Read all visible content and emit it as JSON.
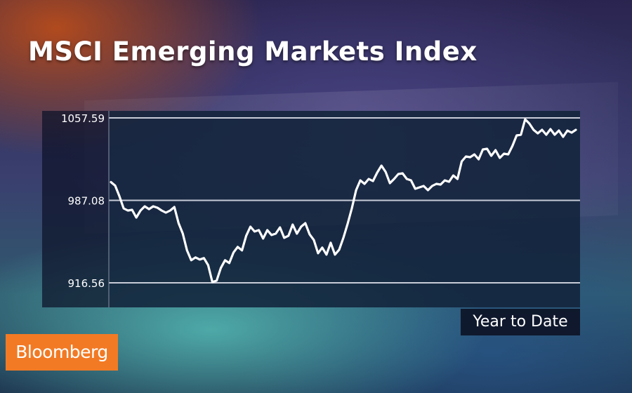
{
  "colors": {
    "line": "#ffffff",
    "gridline": "#c8ccd8",
    "brand": "#f27a24"
  },
  "header": {
    "title": "MSCI Emerging Markets Index"
  },
  "badge": {
    "range_label": "Year to Date"
  },
  "logo": {
    "text": "Bloomberg"
  },
  "chart_data": {
    "type": "line",
    "title": "MSCI Emerging Markets Index",
    "xlabel": "Year to Date",
    "ylabel": "",
    "ylim": [
      916.56,
      1057.59
    ],
    "y_ticks": [
      "1057.59",
      "987.08",
      "916.56"
    ],
    "grid": true,
    "series": [
      {
        "values": [
          1002.7,
          999.7,
          990.7,
          980.2,
          978.4,
          979.0,
          972.4,
          978.4,
          982.0,
          979.6,
          982.0,
          980.8,
          978.4,
          976.6,
          978.4,
          981.4,
          967.6,
          958.6,
          944.3,
          935.9,
          938.3,
          936.5,
          937.7,
          931.7,
          917.2,
          918.4,
          929.3,
          935.9,
          933.5,
          942.5,
          947.3,
          944.3,
          956.8,
          964.6,
          960.4,
          961.6,
          954.4,
          961.6,
          957.4,
          958.6,
          964.0,
          955.0,
          956.8,
          966.4,
          958.6,
          964.6,
          967.6,
          958.0,
          953.2,
          941.9,
          946.7,
          940.7,
          950.8,
          940.7,
          944.9,
          955.0,
          967.0,
          980.2,
          995.8,
          1004.2,
          1001.2,
          1005.4,
          1003.6,
          1010.8,
          1016.8,
          1011.4,
          1001.8,
          1005.4,
          1009.6,
          1010.2,
          1005.4,
          1004.2,
          997.0,
          998.2,
          999.4,
          995.8,
          999.4,
          1001.2,
          1000.6,
          1004.2,
          1003.0,
          1008.4,
          1005.4,
          1020.4,
          1024.6,
          1024.0,
          1026.4,
          1022.2,
          1030.6,
          1031.2,
          1025.2,
          1030.0,
          1023.4,
          1027.0,
          1026.4,
          1033.6,
          1042.6,
          1043.2,
          1056.4,
          1052.8,
          1047.4,
          1044.4,
          1047.4,
          1043.2,
          1048.0,
          1043.2,
          1046.8,
          1041.4,
          1046.8,
          1045.0,
          1047.4
        ]
      }
    ]
  }
}
